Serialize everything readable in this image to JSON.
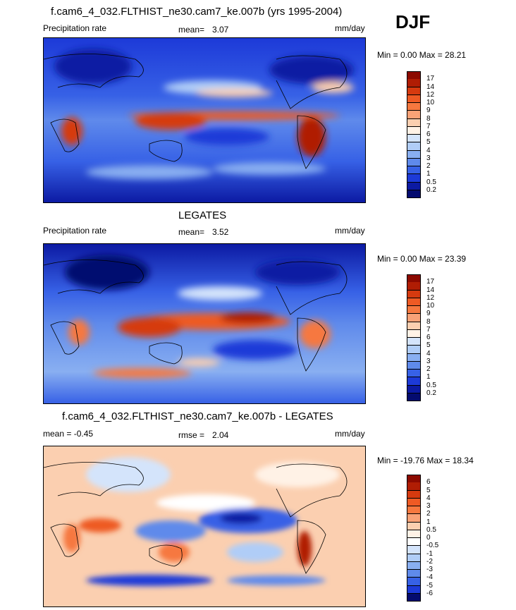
{
  "season": "DJF",
  "panels": [
    {
      "id": "model",
      "title": "f.cam6_4_032.FLTHIST_ne30.cam7_ke.007b (yrs 1995-2004)",
      "left_label": "Precipitation rate",
      "mean_label": "mean=",
      "mean_value": "3.07",
      "units": "mm/day",
      "minmax": "Min =   0.00 Max =  28.21",
      "levels": [
        "17",
        "14",
        "12",
        "10",
        "9",
        "8",
        "7",
        "6",
        "5",
        "4",
        "3",
        "2",
        "1",
        "0.5",
        "0.2"
      ],
      "colors": [
        "#8c0a00",
        "#b01d04",
        "#d63a0f",
        "#ee5a24",
        "#f6783f",
        "#f9a277",
        "#fbcfb0",
        "#fff2e6",
        "#d4e4fb",
        "#b0cdf7",
        "#89aff1",
        "#5f8aeb",
        "#3761e6",
        "#1d3ad8",
        "#0c1aa3",
        "#040b6f"
      ]
    },
    {
      "id": "obs",
      "title": "LEGATES",
      "left_label": "Precipitation rate",
      "mean_label": "mean=",
      "mean_value": "3.52",
      "units": "mm/day",
      "minmax": "Min =   0.00 Max =  23.39",
      "levels": [
        "17",
        "14",
        "12",
        "10",
        "9",
        "8",
        "7",
        "6",
        "5",
        "4",
        "3",
        "2",
        "1",
        "0.5",
        "0.2"
      ],
      "colors": [
        "#8c0a00",
        "#b01d04",
        "#d63a0f",
        "#ee5a24",
        "#f6783f",
        "#f9a277",
        "#fbcfb0",
        "#fff2e6",
        "#d4e4fb",
        "#b0cdf7",
        "#89aff1",
        "#5f8aeb",
        "#3761e6",
        "#1d3ad8",
        "#0c1aa3",
        "#040b6f"
      ]
    },
    {
      "id": "diff",
      "title": "f.cam6_4_032.FLTHIST_ne30.cam7_ke.007b - LEGATES",
      "left_label": "mean =  -0.45",
      "mean_label": "rmse =",
      "mean_value": "2.04",
      "units": "mm/day",
      "minmax": "Min = -19.76 Max =  18.34",
      "levels": [
        "6",
        "5",
        "4",
        "3",
        "2",
        "1",
        "0.5",
        "0",
        "-0.5",
        "-1",
        "-2",
        "-3",
        "-4",
        "-5",
        "-6"
      ],
      "colors": [
        "#8c0a00",
        "#b01d04",
        "#d63a0f",
        "#ee5a24",
        "#f6783f",
        "#f9a277",
        "#fbcfb0",
        "#fff2e6",
        "#ffffff",
        "#d4e4fb",
        "#b0cdf7",
        "#89aff1",
        "#5f8aeb",
        "#3761e6",
        "#1d3ad8",
        "#040b6f"
      ]
    }
  ]
}
